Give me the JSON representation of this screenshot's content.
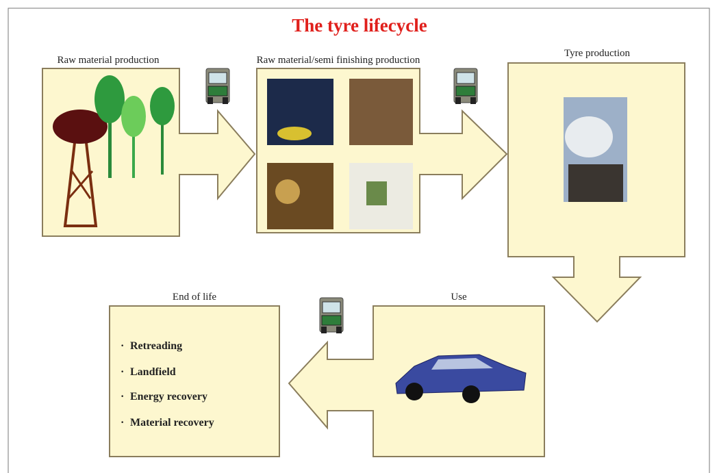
{
  "title": "The tyre lifecycle",
  "stages": [
    {
      "label": "Raw material production"
    },
    {
      "label": "Raw material/semi finishing production"
    },
    {
      "label": "Tyre production"
    },
    {
      "label": "Use"
    },
    {
      "label": "End of life"
    }
  ],
  "end_of_life": {
    "bullet": "·",
    "items": [
      "Retreading",
      "Landfield",
      "Energy recovery",
      "Material recovery"
    ]
  }
}
